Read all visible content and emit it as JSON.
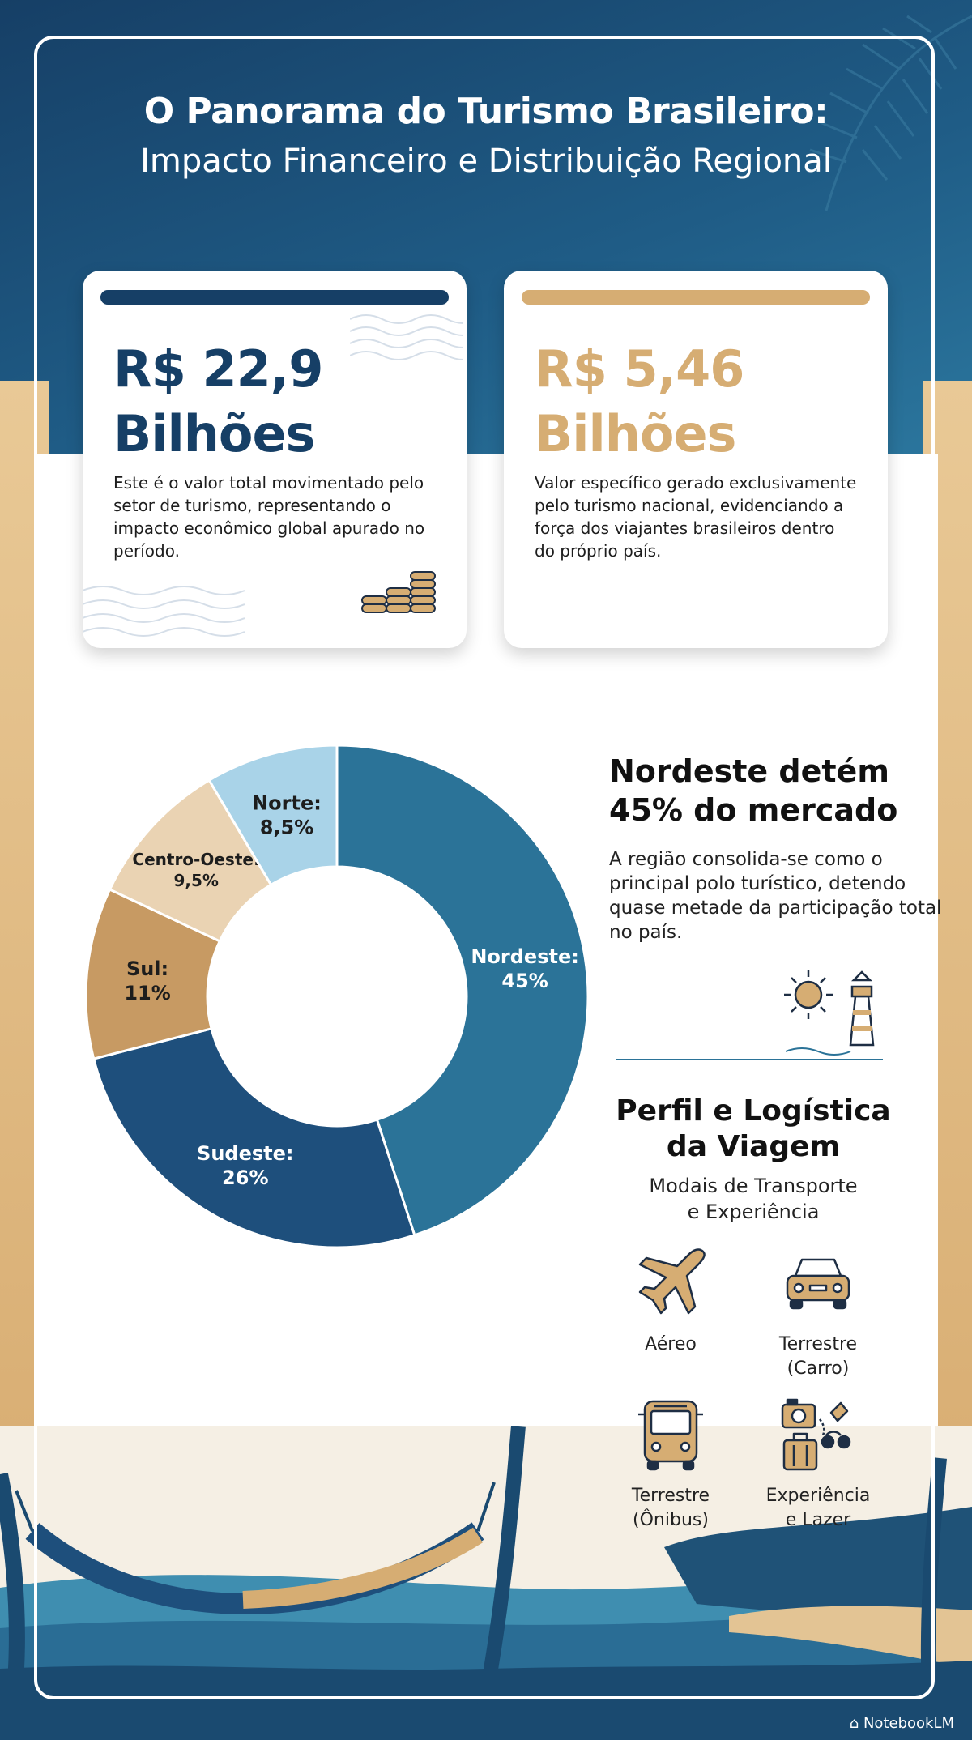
{
  "header": {
    "title": "O Panorama do Turismo Brasileiro:",
    "subtitle": "Impacto Financeiro e Distribuição Regional"
  },
  "cards": [
    {
      "value_line1": "R$ 22,9",
      "value_line2": "Bilhões",
      "description": "Este é o valor total movimentado pelo setor de turismo, representando o impacto econômico global apurado no período.",
      "accent": "#163f66",
      "icon": "coins-icon"
    },
    {
      "value_line1": "R$ 5,46",
      "value_line2": "Bilhões",
      "description": "Valor específico gerado exclusivamente pelo turismo nacional, evidenciando a força dos viajantes brasileiros dentro do próprio país.",
      "accent": "#d6ad73",
      "icon": ""
    }
  ],
  "chart_data": {
    "type": "pie",
    "slices": [
      {
        "label": "Nordeste:",
        "value_text": "45%",
        "value": 45,
        "color": "#2b7398"
      },
      {
        "label": "Sudeste:",
        "value_text": "26%",
        "value": 26,
        "color": "#1e4f7c"
      },
      {
        "label": "Sul:",
        "value_text": "11%",
        "value": 11,
        "color": "#c79a63"
      },
      {
        "label": "Centro-Oeste:",
        "value_text": "9,5%",
        "value": 9.5,
        "color": "#ead3b3"
      },
      {
        "label": "Norte:",
        "value_text": "8,5%",
        "value": 8.5,
        "color": "#a9d3e8"
      }
    ]
  },
  "highlight": {
    "title_line1": "Nordeste detém",
    "title_line2": "45% do mercado",
    "description": "A região consolida-se como o principal polo turístico, detendo quase metade da participação total no país.",
    "icon": "lighthouse-icon"
  },
  "perfil": {
    "title_line1": "Perfil e Logística",
    "title_line2": "da Viagem",
    "subtitle_line1": "Modais de Transporte",
    "subtitle_line2": "e Experiência",
    "modes": [
      {
        "line1": "Aéreo",
        "line2": "",
        "icon": "airplane-icon"
      },
      {
        "line1": "Terrestre",
        "line2": "(Carro)",
        "icon": "car-icon"
      },
      {
        "line1": "Terrestre",
        "line2": "(Ônibus)",
        "icon": "bus-icon"
      },
      {
        "line1": "Experiência",
        "line2": "e Lazer",
        "icon": "camera-luggage-icon"
      }
    ]
  },
  "footer": {
    "brand": "NotebookLM"
  },
  "colors": {
    "navy": "#163f66",
    "sand": "#d6ad73",
    "ocean": "#2b7398",
    "white": "#ffffff"
  }
}
